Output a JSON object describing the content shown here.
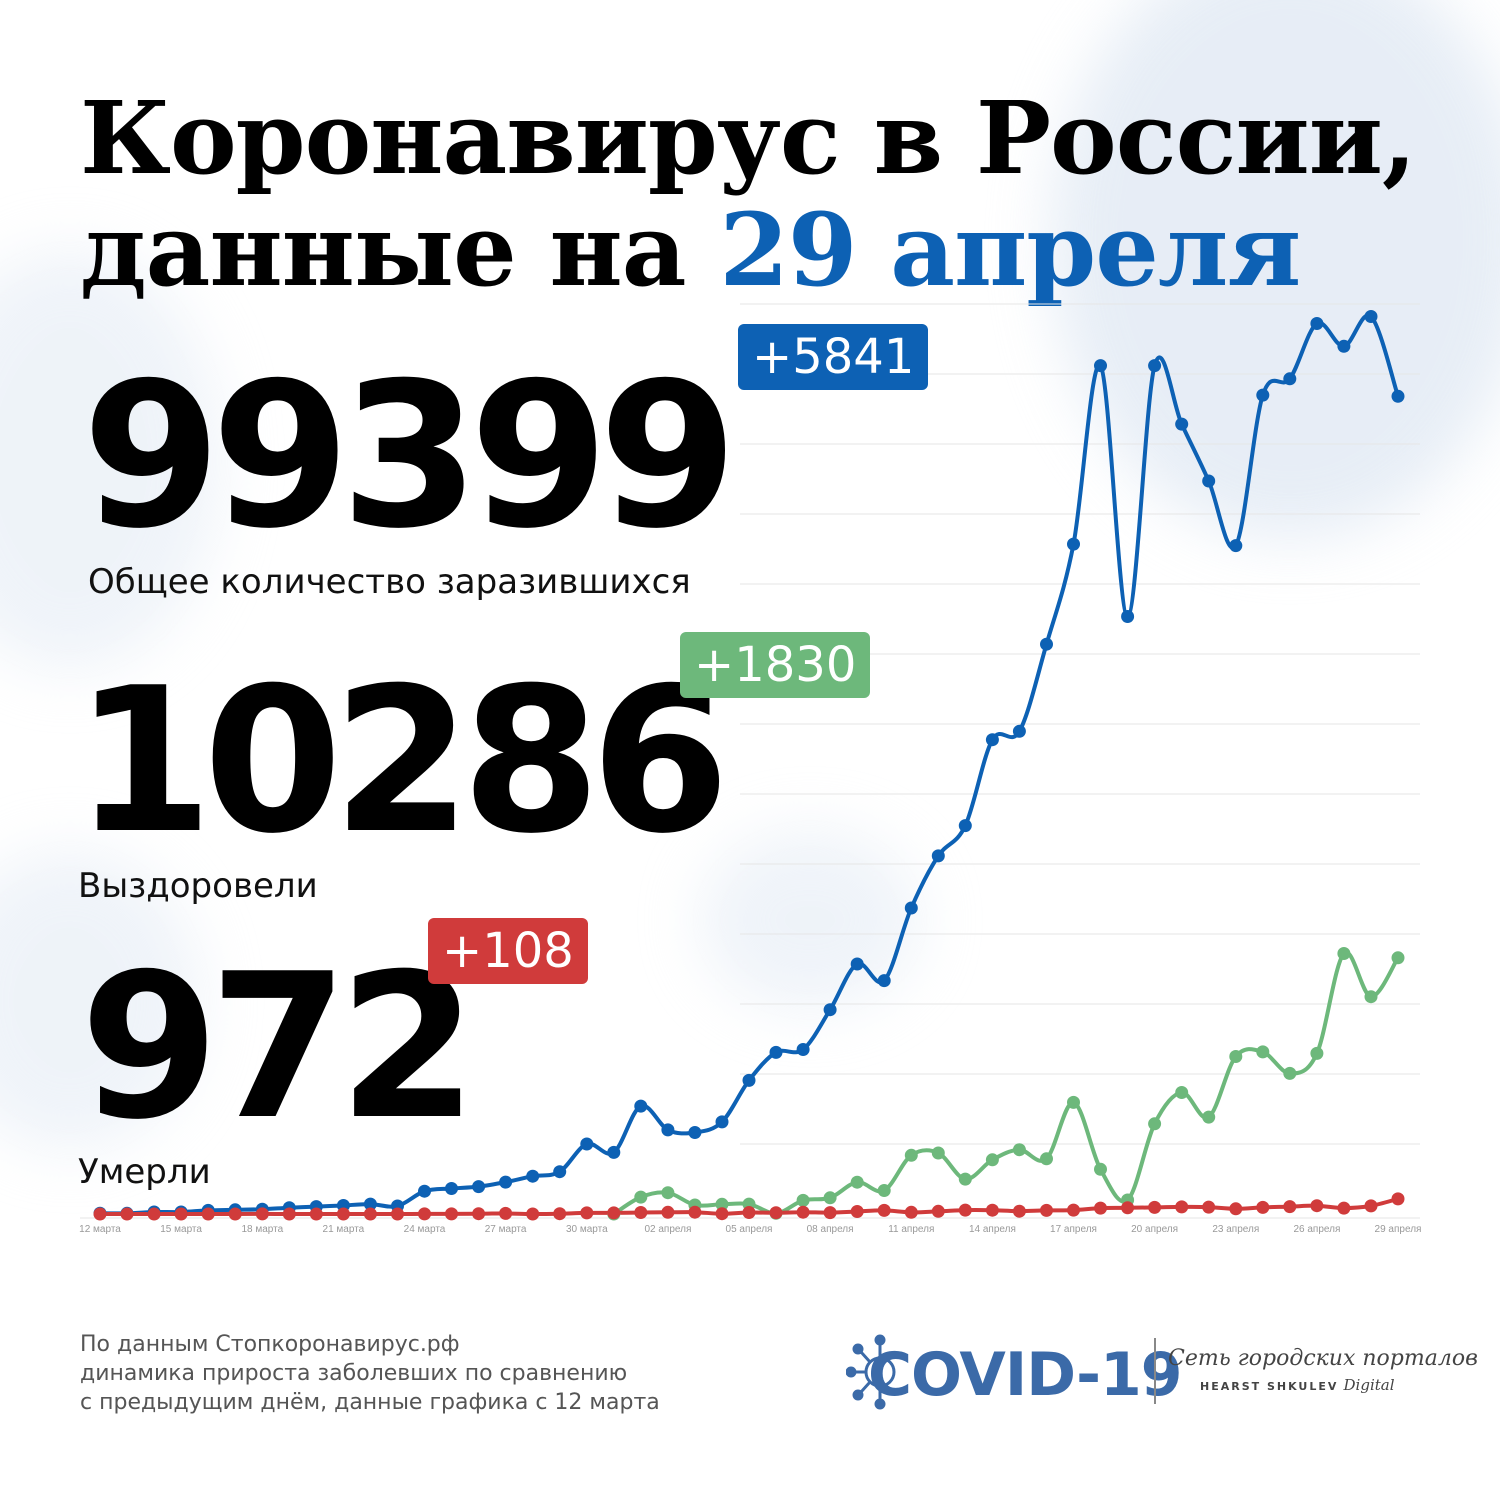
{
  "header": {
    "title_line1": "Коронавирус в России,",
    "title_line2_prefix": "данные на ",
    "title_line2_accent": "29 апреля"
  },
  "stats": {
    "infected": {
      "value": "99399",
      "delta": "+5841",
      "label": "Общее количество заразившихся"
    },
    "recovered": {
      "value": "10286",
      "delta": "+1830",
      "label": "Выздоровели"
    },
    "deaths": {
      "value": "972",
      "delta": "+108",
      "label": "Умерли"
    }
  },
  "colors": {
    "accent": "#0d61b4",
    "infected": "#0d61b4",
    "recovered": "#6db87b",
    "deaths": "#d03b3b",
    "grid": "#e6e6e6"
  },
  "footnote": {
    "line1": "По данным Стопкоронавирус.рф",
    "line2": "динамика прироста заболевших по сравнению",
    "line3": "с предыдущим днём, данные графика с 12 марта"
  },
  "logo": {
    "name": "COVID-19",
    "brand_line1": "Сеть городских порталов",
    "brand_line2_bold": "HEARST SHKULEV",
    "brand_line2_italic": "Digital",
    "icon": "virus-icon"
  },
  "chart_data": {
    "type": "line",
    "x": [
      "12 марта",
      "13 марта",
      "14 марта",
      "15 марта",
      "16 марта",
      "17 марта",
      "18 марта",
      "19 марта",
      "20 марта",
      "21 марта",
      "22 марта",
      "23 марта",
      "24 марта",
      "25 марта",
      "26 марта",
      "27 марта",
      "28 марта",
      "29 марта",
      "30 марта",
      "31 марта",
      "01 апреля",
      "02 апреля",
      "03 апреля",
      "04 апреля",
      "05 апреля",
      "06 апреля",
      "07 апреля",
      "08 апреля",
      "09 апреля",
      "10 апреля",
      "11 апреля",
      "12 апреля",
      "13 апреля",
      "14 апреля",
      "15 апреля",
      "16 апреля",
      "17 апреля",
      "18 апреля",
      "19 апреля",
      "20 апреля",
      "21 апреля",
      "22 апреля",
      "23 апреля",
      "24 апреля",
      "25 апреля",
      "26 апреля",
      "27 апреля",
      "28 апреля",
      "29 апреля"
    ],
    "tick_labels": [
      "12 марта",
      "15 марта",
      "18 марта",
      "21 марта",
      "24 марта",
      "27 марта",
      "30 марта",
      "02 апреля",
      "05 апреля",
      "08 апреля",
      "11 апреля",
      "14 апреля",
      "17 апреля",
      "20 апреля",
      "23 апреля",
      "26 апреля",
      "29 апреля"
    ],
    "series": [
      {
        "key": "infected",
        "values": [
          6,
          5,
          14,
          14,
          26,
          30,
          34,
          45,
          53,
          61,
          71,
          57,
          163,
          182,
          196,
          228,
          270,
          302,
          500,
          440,
          771,
          601,
          582,
          658,
          954,
          1154,
          1175,
          1459,
          1786,
          1667,
          2186,
          2558,
          2774,
          3388,
          3448,
          4070,
          4785,
          6060,
          4268,
          6060,
          5642,
          5236,
          4774,
          5849,
          5966,
          6361,
          6198,
          6411,
          5841
        ]
      },
      {
        "key": "recovered",
        "values": [
          0,
          0,
          0,
          0,
          0,
          0,
          0,
          0,
          0,
          0,
          0,
          0,
          0,
          0,
          0,
          0,
          0,
          0,
          3,
          0,
          121,
          152,
          64,
          69,
          71,
          5,
          97,
          116,
          227,
          168,
          419,
          436,
          249,
          387,
          459,
          394,
          797,
          319,
          100,
          644,
          868,
          692,
          1125,
          1158,
          1004,
          1147,
          1861,
          1552,
          1830
        ]
      },
      {
        "key": "deaths",
        "values": [
          0,
          0,
          0,
          0,
          0,
          0,
          1,
          0,
          0,
          0,
          0,
          0,
          1,
          1,
          2,
          4,
          0,
          2,
          8,
          8,
          11,
          12,
          13,
          2,
          11,
          9,
          13,
          10,
          18,
          26,
          12,
          19,
          28,
          27,
          20,
          26,
          28,
          42,
          44,
          47,
          51,
          49,
          37,
          47,
          53,
          59,
          42,
          58,
          108
        ]
      }
    ],
    "ylim": [
      0,
      6500
    ]
  }
}
